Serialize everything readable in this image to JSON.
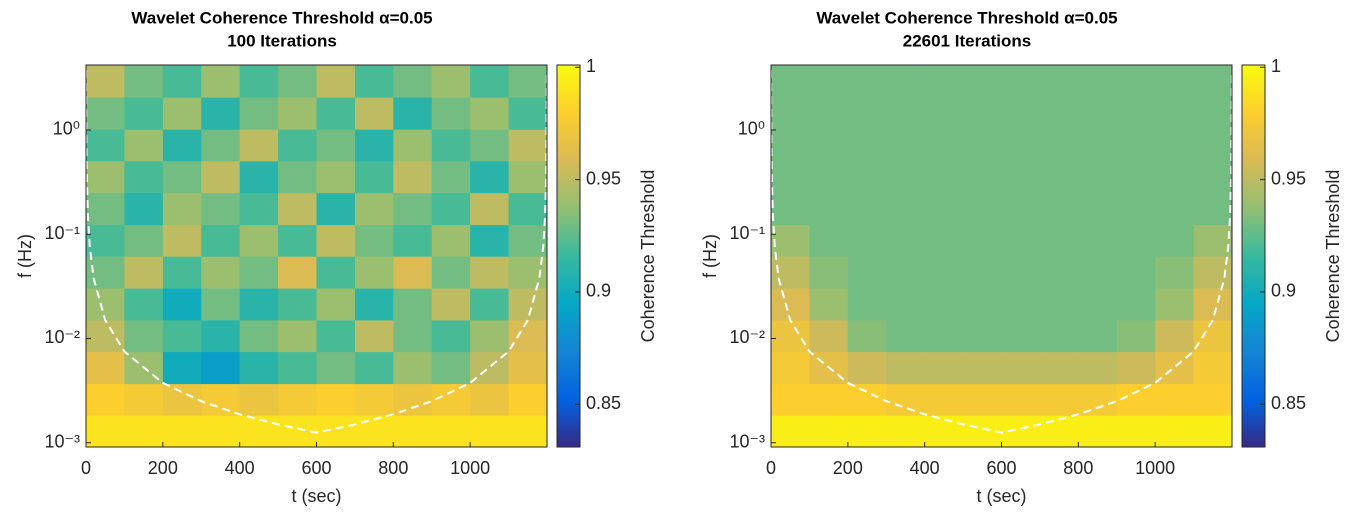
{
  "chart_data": [
    {
      "type": "heatmap",
      "title": "Wavelet Coherence Threshold α=0.05",
      "subtitle": "100 Iterations",
      "x_label": "t (sec)",
      "y_label": "f (Hz)",
      "colorbar_label": "Coherence Threshold",
      "colormap": "parula",
      "yscale": "log",
      "xlim": [
        0,
        1200
      ],
      "xticks": [
        0,
        200,
        400,
        600,
        800,
        1000
      ],
      "ylim": [
        0.00091,
        4.2
      ],
      "yticks": [
        {
          "value": 0.001,
          "label": "10⁻³"
        },
        {
          "value": 0.01,
          "label": "10⁻²"
        },
        {
          "value": 0.1,
          "label": "10⁻¹"
        },
        {
          "value": 1,
          "label": "10⁰"
        }
      ],
      "clim": [
        0.831,
        1.001
      ],
      "cticks": [
        0.85,
        0.9,
        0.95,
        1
      ],
      "x_edges": [
        0,
        100,
        200,
        300,
        400,
        500,
        600,
        700,
        800,
        900,
        1000,
        1100,
        1200
      ],
      "y_edges": [
        0.00091,
        0.00184,
        0.0037,
        0.0075,
        0.0151,
        0.0305,
        0.0617,
        0.124,
        0.251,
        0.507,
        1.02,
        2.07,
        4.2
      ],
      "values": [
        [
          0.99,
          0.99,
          0.99,
          0.99,
          0.99,
          0.99,
          0.99,
          0.99,
          0.99,
          0.99,
          0.99,
          0.99
        ],
        [
          0.98,
          0.975,
          0.97,
          0.975,
          0.97,
          0.975,
          0.98,
          0.975,
          0.97,
          0.975,
          0.97,
          0.98
        ],
        [
          0.965,
          0.94,
          0.9,
          0.89,
          0.91,
          0.92,
          0.93,
          0.92,
          0.94,
          0.93,
          0.95,
          0.965
        ],
        [
          0.95,
          0.93,
          0.92,
          0.91,
          0.93,
          0.94,
          0.92,
          0.95,
          0.93,
          0.92,
          0.94,
          0.96
        ],
        [
          0.94,
          0.92,
          0.9,
          0.93,
          0.91,
          0.92,
          0.94,
          0.91,
          0.93,
          0.95,
          0.92,
          0.95
        ],
        [
          0.93,
          0.95,
          0.92,
          0.94,
          0.93,
          0.96,
          0.92,
          0.94,
          0.96,
          0.93,
          0.95,
          0.94
        ],
        [
          0.92,
          0.93,
          0.95,
          0.92,
          0.94,
          0.92,
          0.95,
          0.93,
          0.92,
          0.94,
          0.91,
          0.93
        ],
        [
          0.93,
          0.91,
          0.94,
          0.93,
          0.92,
          0.95,
          0.91,
          0.94,
          0.93,
          0.92,
          0.95,
          0.92
        ],
        [
          0.94,
          0.92,
          0.93,
          0.95,
          0.91,
          0.93,
          0.94,
          0.92,
          0.95,
          0.93,
          0.91,
          0.94
        ],
        [
          0.92,
          0.94,
          0.91,
          0.93,
          0.95,
          0.92,
          0.93,
          0.91,
          0.94,
          0.92,
          0.93,
          0.95
        ],
        [
          0.93,
          0.92,
          0.94,
          0.91,
          0.93,
          0.94,
          0.92,
          0.95,
          0.91,
          0.93,
          0.94,
          0.92
        ],
        [
          0.95,
          0.93,
          0.92,
          0.94,
          0.92,
          0.93,
          0.95,
          0.92,
          0.93,
          0.94,
          0.92,
          0.93
        ]
      ],
      "coi": {
        "color": "#ffffff",
        "x": [
          0.2,
          1,
          2,
          5,
          10,
          20,
          50,
          100,
          200,
          300,
          400,
          500,
          600,
          700,
          800,
          900,
          1000,
          1100,
          1150,
          1180,
          1190,
          1195,
          1198,
          1199.8
        ],
        "y": [
          3.75,
          0.75,
          0.375,
          0.15,
          0.075,
          0.0375,
          0.015,
          0.0075,
          0.00375,
          0.0025,
          0.001875,
          0.0015,
          0.00125,
          0.0015,
          0.001875,
          0.0025,
          0.00375,
          0.0075,
          0.015,
          0.0375,
          0.075,
          0.15,
          0.375,
          3.75
        ]
      }
    },
    {
      "type": "heatmap",
      "title": "Wavelet Coherence Threshold α=0.05",
      "subtitle": "22601 Iterations",
      "x_label": "t (sec)",
      "y_label": "f (Hz)",
      "colorbar_label": "Coherence Threshold",
      "colormap": "parula",
      "yscale": "log",
      "xlim": [
        0,
        1200
      ],
      "xticks": [
        0,
        200,
        400,
        600,
        800,
        1000
      ],
      "ylim": [
        0.00091,
        4.2
      ],
      "yticks": [
        {
          "value": 0.001,
          "label": "10⁻³"
        },
        {
          "value": 0.01,
          "label": "10⁻²"
        },
        {
          "value": 0.1,
          "label": "10⁻¹"
        },
        {
          "value": 1,
          "label": "10⁰"
        }
      ],
      "clim": [
        0.831,
        1.001
      ],
      "cticks": [
        0.85,
        0.9,
        0.95,
        1
      ],
      "x_edges": [
        0,
        100,
        200,
        300,
        400,
        500,
        600,
        700,
        800,
        900,
        1000,
        1100,
        1200
      ],
      "y_edges": [
        0.00091,
        0.00184,
        0.0037,
        0.0075,
        0.0151,
        0.0305,
        0.0617,
        0.124,
        0.251,
        0.507,
        1.02,
        2.07,
        4.2
      ],
      "values": [
        [
          0.995,
          0.995,
          0.995,
          0.995,
          0.995,
          0.995,
          0.995,
          0.995,
          0.995,
          0.995,
          0.995,
          0.995
        ],
        [
          0.98,
          0.98,
          0.98,
          0.975,
          0.975,
          0.975,
          0.975,
          0.975,
          0.975,
          0.98,
          0.98,
          0.98
        ],
        [
          0.975,
          0.965,
          0.955,
          0.95,
          0.95,
          0.95,
          0.95,
          0.95,
          0.95,
          0.955,
          0.965,
          0.975
        ],
        [
          0.97,
          0.955,
          0.935,
          0.93,
          0.93,
          0.93,
          0.93,
          0.93,
          0.93,
          0.935,
          0.955,
          0.97
        ],
        [
          0.96,
          0.94,
          0.93,
          0.93,
          0.93,
          0.93,
          0.93,
          0.93,
          0.93,
          0.93,
          0.94,
          0.96
        ],
        [
          0.95,
          0.935,
          0.93,
          0.93,
          0.93,
          0.93,
          0.93,
          0.93,
          0.93,
          0.93,
          0.935,
          0.95
        ],
        [
          0.94,
          0.93,
          0.93,
          0.93,
          0.93,
          0.93,
          0.93,
          0.93,
          0.93,
          0.93,
          0.93,
          0.94
        ],
        [
          0.93,
          0.93,
          0.93,
          0.93,
          0.93,
          0.93,
          0.93,
          0.93,
          0.93,
          0.93,
          0.93,
          0.93
        ],
        [
          0.93,
          0.93,
          0.93,
          0.93,
          0.93,
          0.93,
          0.93,
          0.93,
          0.93,
          0.93,
          0.93,
          0.93
        ],
        [
          0.93,
          0.93,
          0.93,
          0.93,
          0.93,
          0.93,
          0.93,
          0.93,
          0.93,
          0.93,
          0.93,
          0.93
        ],
        [
          0.93,
          0.93,
          0.93,
          0.93,
          0.93,
          0.93,
          0.93,
          0.93,
          0.93,
          0.93,
          0.93,
          0.93
        ],
        [
          0.93,
          0.93,
          0.93,
          0.93,
          0.93,
          0.93,
          0.93,
          0.93,
          0.93,
          0.93,
          0.93,
          0.93
        ]
      ],
      "coi": {
        "color": "#ffffff",
        "x": [
          0.2,
          1,
          2,
          5,
          10,
          20,
          50,
          100,
          200,
          300,
          400,
          500,
          600,
          700,
          800,
          900,
          1000,
          1100,
          1150,
          1180,
          1190,
          1195,
          1198,
          1199.8
        ],
        "y": [
          3.75,
          0.75,
          0.375,
          0.15,
          0.075,
          0.0375,
          0.015,
          0.0075,
          0.00375,
          0.0025,
          0.001875,
          0.0015,
          0.00125,
          0.0015,
          0.001875,
          0.0025,
          0.00375,
          0.0075,
          0.015,
          0.0375,
          0.075,
          0.15,
          0.375,
          3.75
        ]
      }
    }
  ]
}
